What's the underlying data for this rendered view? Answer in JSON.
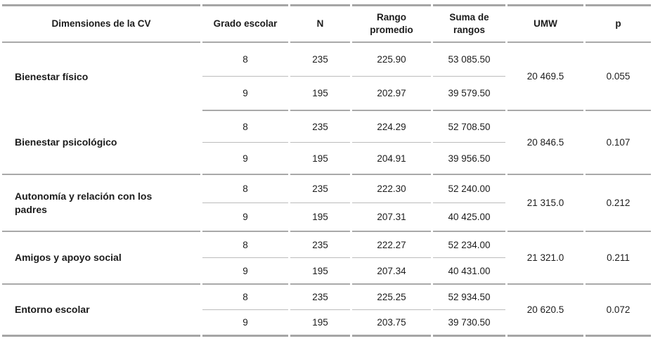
{
  "colors": {
    "background": "#ffffff",
    "text": "#1c1c1c",
    "border_strong": "#a5a5a5",
    "border_medium": "#a9a9a9",
    "border_light": "#bcbcbc"
  },
  "table": {
    "columns": [
      "Dimensiones de la CV",
      "Grado escolar",
      "N",
      "Rango promedio",
      "Suma de rangos",
      "UMW",
      "p"
    ],
    "rows": [
      {
        "dimension": "Bienestar físico",
        "subrows": [
          {
            "grado": "8",
            "n": "235",
            "rango_promedio": "225.90",
            "suma_rangos": "53 085.50"
          },
          {
            "grado": "9",
            "n": "195",
            "rango_promedio": "202.97",
            "suma_rangos": "39 579.50"
          }
        ],
        "umw": "20 469.5",
        "p": "0.055"
      },
      {
        "dimension": "Bienestar psicológico",
        "subrows": [
          {
            "grado": "8",
            "n": "235",
            "rango_promedio": "224.29",
            "suma_rangos": "52 708.50"
          },
          {
            "grado": "9",
            "n": "195",
            "rango_promedio": "204.91",
            "suma_rangos": "39 956.50"
          }
        ],
        "umw": "20 846.5",
        "p": "0.107"
      },
      {
        "dimension": "Autonomía y relación con los padres",
        "subrows": [
          {
            "grado": "8",
            "n": "235",
            "rango_promedio": "222.30",
            "suma_rangos": "52 240.00"
          },
          {
            "grado": "9",
            "n": "195",
            "rango_promedio": "207.31",
            "suma_rangos": "40 425.00"
          }
        ],
        "umw": "21 315.0",
        "p": "0.212"
      },
      {
        "dimension": "Amigos y apoyo social",
        "subrows": [
          {
            "grado": "8",
            "n": "235",
            "rango_promedio": "222.27",
            "suma_rangos": "52 234.00"
          },
          {
            "grado": "9",
            "n": "195",
            "rango_promedio": "207.34",
            "suma_rangos": "40 431.00"
          }
        ],
        "umw": "21 321.0",
        "p": "0.211"
      },
      {
        "dimension": "Entorno escolar",
        "subrows": [
          {
            "grado": "8",
            "n": "235",
            "rango_promedio": "225.25",
            "suma_rangos": "52 934.50"
          },
          {
            "grado": "9",
            "n": "195",
            "rango_promedio": "203.75",
            "suma_rangos": "39 730.50"
          }
        ],
        "umw": "20 620.5",
        "p": "0.072"
      }
    ]
  }
}
